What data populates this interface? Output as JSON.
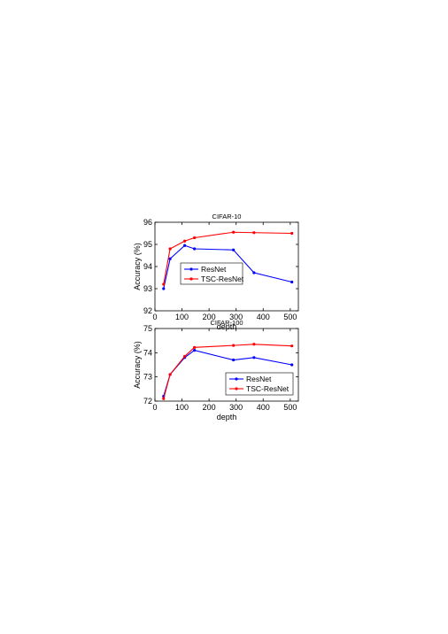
{
  "colors": {
    "resnet": "#0000ff",
    "tsc": "#ff0000"
  },
  "chart_data": [
    {
      "type": "line",
      "title": "CIFAR-10",
      "xlabel": "depth",
      "ylabel": "Accuracy (%)",
      "xlim": [
        0,
        530
      ],
      "ylim": [
        92,
        96
      ],
      "xticks": [
        0,
        100,
        200,
        300,
        400,
        500
      ],
      "yticks": [
        92,
        93,
        94,
        95,
        96
      ],
      "legend_placement": "lower-left",
      "series": [
        {
          "name": "ResNet",
          "color": "#0000ff",
          "x": [
            32,
            56,
            110,
            146,
            290,
            366,
            506
          ],
          "y": [
            93.0,
            94.35,
            94.95,
            94.8,
            94.75,
            93.72,
            93.3
          ]
        },
        {
          "name": "TSC-ResNet",
          "color": "#ff0000",
          "x": [
            32,
            56,
            110,
            146,
            290,
            366,
            506
          ],
          "y": [
            93.2,
            94.8,
            95.15,
            95.3,
            95.55,
            95.53,
            95.5
          ]
        }
      ]
    },
    {
      "type": "line",
      "title": "CIFAR-100",
      "xlabel": "depth",
      "ylabel": "Accuracy (%)",
      "xlim": [
        0,
        530
      ],
      "ylim": [
        72,
        75
      ],
      "xticks": [
        0,
        100,
        200,
        300,
        400,
        500
      ],
      "yticks": [
        72,
        73,
        74,
        75
      ],
      "legend_placement": "lower-right",
      "series": [
        {
          "name": "ResNet",
          "color": "#0000ff",
          "x": [
            32,
            56,
            110,
            146,
            290,
            366,
            506
          ],
          "y": [
            72.2,
            73.1,
            73.8,
            74.1,
            73.7,
            73.8,
            73.5
          ]
        },
        {
          "name": "TSC-ResNet",
          "color": "#ff0000",
          "x": [
            32,
            56,
            110,
            146,
            290,
            366,
            506
          ],
          "y": [
            72.1,
            73.1,
            73.85,
            74.22,
            74.3,
            74.35,
            74.28
          ]
        }
      ]
    }
  ]
}
